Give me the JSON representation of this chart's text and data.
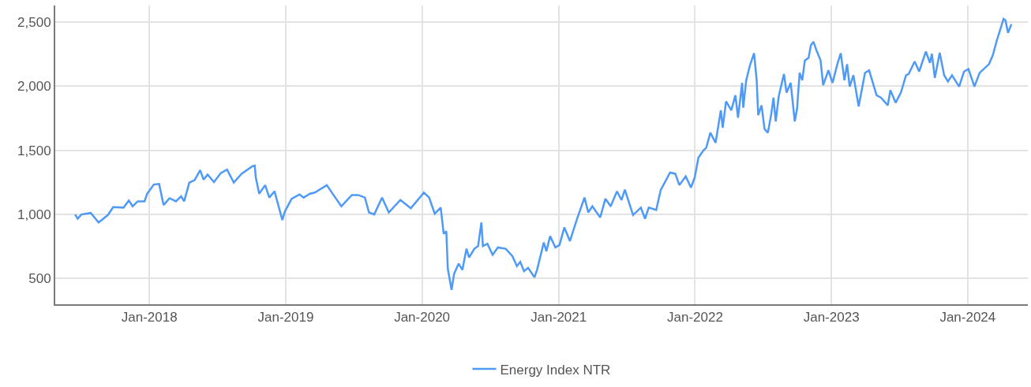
{
  "chart_data": {
    "type": "line",
    "x": [
      "2017-06-16",
      "2017-06-23",
      "2017-07-03",
      "2017-07-28",
      "2017-08-18",
      "2017-09-12",
      "2017-09-26",
      "2017-10-24",
      "2017-11-07",
      "2017-11-17",
      "2017-12-01",
      "2017-12-19",
      "2017-12-26",
      "2018-01-13",
      "2018-01-27",
      "2018-02-08",
      "2018-02-24",
      "2018-03-13",
      "2018-03-27",
      "2018-04-04",
      "2018-04-18",
      "2018-05-02",
      "2018-05-17",
      "2018-05-26",
      "2018-06-06",
      "2018-06-23",
      "2018-07-11",
      "2018-07-28",
      "2018-08-15",
      "2018-09-05",
      "2018-10-03",
      "2018-10-10",
      "2018-10-13",
      "2018-10-22",
      "2018-11-07",
      "2018-11-18",
      "2018-12-02",
      "2018-12-23",
      "2018-12-30",
      "2019-01-17",
      "2019-02-07",
      "2019-02-18",
      "2019-03-07",
      "2019-03-20",
      "2019-04-21",
      "2019-05-09",
      "2019-05-30",
      "2019-06-27",
      "2019-07-14",
      "2019-08-01",
      "2019-08-12",
      "2019-08-26",
      "2019-09-16",
      "2019-10-04",
      "2019-11-04",
      "2019-12-02",
      "2020-01-06",
      "2020-01-20",
      "2020-02-04",
      "2020-02-20",
      "2020-02-28",
      "2020-03-06",
      "2020-03-10",
      "2020-03-20",
      "2020-03-27",
      "2020-04-08",
      "2020-04-18",
      "2020-04-29",
      "2020-05-06",
      "2020-05-20",
      "2020-05-30",
      "2020-06-08",
      "2020-06-12",
      "2020-06-24",
      "2020-07-08",
      "2020-07-22",
      "2020-08-12",
      "2020-08-30",
      "2020-09-11",
      "2020-09-20",
      "2020-09-30",
      "2020-10-11",
      "2020-10-28",
      "2020-11-04",
      "2020-11-22",
      "2020-11-29",
      "2020-12-09",
      "2020-12-23",
      "2021-01-03",
      "2021-01-16",
      "2021-01-31",
      "2021-02-18",
      "2021-03-11",
      "2021-03-21",
      "2021-04-01",
      "2021-04-22",
      "2021-05-06",
      "2021-05-20",
      "2021-06-06",
      "2021-06-18",
      "2021-06-27",
      "2021-07-19",
      "2021-08-09",
      "2021-08-20",
      "2021-08-30",
      "2021-09-19",
      "2021-10-01",
      "2021-10-26",
      "2021-11-09",
      "2021-11-20",
      "2021-12-07",
      "2021-12-21",
      "2021-12-31",
      "2022-01-10",
      "2022-01-24",
      "2022-01-31",
      "2022-02-11",
      "2022-02-25",
      "2022-03-11",
      "2022-03-16",
      "2022-03-25",
      "2022-04-08",
      "2022-04-19",
      "2022-04-26",
      "2022-05-07",
      "2022-05-10",
      "2022-05-18",
      "2022-05-28",
      "2022-06-08",
      "2022-06-15",
      "2022-06-19",
      "2022-06-28",
      "2022-07-06",
      "2022-07-15",
      "2022-07-24",
      "2022-07-30",
      "2022-08-05",
      "2022-08-13",
      "2022-08-27",
      "2022-09-03",
      "2022-09-14",
      "2022-09-25",
      "2022-10-01",
      "2022-10-08",
      "2022-10-15",
      "2022-10-22",
      "2022-11-01",
      "2022-11-07",
      "2022-11-14",
      "2022-11-22",
      "2022-12-03",
      "2022-12-10",
      "2022-12-24",
      "2023-01-04",
      "2023-01-18",
      "2023-01-26",
      "2023-02-05",
      "2023-02-12",
      "2023-02-19",
      "2023-03-01",
      "2023-03-15",
      "2023-04-01",
      "2023-04-12",
      "2023-05-02",
      "2023-05-14",
      "2023-06-01",
      "2023-06-08",
      "2023-06-22",
      "2023-07-06",
      "2023-07-20",
      "2023-07-27",
      "2023-08-12",
      "2023-08-24",
      "2023-09-11",
      "2023-09-22",
      "2023-09-27",
      "2023-10-05",
      "2023-10-18",
      "2023-10-30",
      "2023-11-09",
      "2023-11-20",
      "2023-12-09",
      "2023-12-22",
      "2024-01-03",
      "2024-01-19",
      "2024-02-02",
      "2024-02-27",
      "2024-03-08",
      "2024-03-19",
      "2024-04-06",
      "2024-04-11",
      "2024-04-18",
      "2024-04-27"
    ],
    "series": [
      {
        "name": "Energy Index NTR",
        "color": "#4e9af6",
        "values": [
          1000,
          967,
          1000,
          1012,
          938,
          996,
          1058,
          1054,
          1109,
          1064,
          1103,
          1103,
          1162,
          1234,
          1239,
          1074,
          1127,
          1103,
          1142,
          1103,
          1249,
          1268,
          1346,
          1272,
          1311,
          1253,
          1323,
          1350,
          1249,
          1318,
          1375,
          1381,
          1288,
          1162,
          1229,
          1132,
          1181,
          957,
          1025,
          1123,
          1156,
          1132,
          1162,
          1171,
          1229,
          1152,
          1064,
          1152,
          1152,
          1132,
          1016,
          1000,
          1132,
          1016,
          1113,
          1049,
          1171,
          1132,
          1006,
          1054,
          850,
          870,
          578,
          412,
          539,
          616,
          568,
          733,
          665,
          733,
          753,
          938,
          753,
          772,
          685,
          743,
          733,
          675,
          597,
          630,
          558,
          584,
          510,
          568,
          782,
          714,
          831,
          743,
          762,
          899,
          792,
          957,
          1132,
          1016,
          1064,
          977,
          1123,
          1064,
          1181,
          1113,
          1194,
          996,
          1054,
          967,
          1054,
          1035,
          1191,
          1327,
          1318,
          1229,
          1298,
          1210,
          1288,
          1444,
          1502,
          1521,
          1638,
          1560,
          1813,
          1677,
          1882,
          1813,
          1930,
          1755,
          2027,
          1833,
          2047,
          2164,
          2258,
          2047,
          1775,
          1852,
          1667,
          1638,
          1784,
          1911,
          1726,
          1921,
          2096,
          1950,
          2027,
          1726,
          1823,
          2105,
          2047,
          2202,
          2222,
          2319,
          2348,
          2280,
          2202,
          2008,
          2125,
          2027,
          2183,
          2258,
          2047,
          2173,
          1998,
          2086,
          1843,
          2105,
          2125,
          1930,
          1911,
          1852,
          1969,
          1872,
          1950,
          2086,
          2096,
          2193,
          2115,
          2271,
          2183,
          2254,
          2066,
          2261,
          2086,
          2037,
          2086,
          1998,
          2115,
          2134,
          1998,
          2105,
          2173,
          2241,
          2358,
          2525,
          2515,
          2417,
          2485
        ]
      }
    ],
    "xlim": [
      "2017-04-24",
      "2024-06-10"
    ],
    "xticks": [
      {
        "value": "2018-01-01",
        "label": "Jan-2018"
      },
      {
        "value": "2019-01-01",
        "label": "Jan-2019"
      },
      {
        "value": "2020-01-01",
        "label": "Jan-2020"
      },
      {
        "value": "2021-01-01",
        "label": "Jan-2021"
      },
      {
        "value": "2022-01-01",
        "label": "Jan-2022"
      },
      {
        "value": "2023-01-01",
        "label": "Jan-2023"
      },
      {
        "value": "2024-01-01",
        "label": "Jan-2024"
      }
    ],
    "ylim": [
      300,
      2630
    ],
    "yticks": [
      {
        "value": 500,
        "label": "500"
      },
      {
        "value": 1000,
        "label": "1,000"
      },
      {
        "value": 1500,
        "label": "1,500"
      },
      {
        "value": 2000,
        "label": "2,000"
      },
      {
        "value": 2500,
        "label": "2,500"
      }
    ],
    "grid": true,
    "legend": "bottom",
    "marker": "none",
    "line_style": "solid"
  }
}
